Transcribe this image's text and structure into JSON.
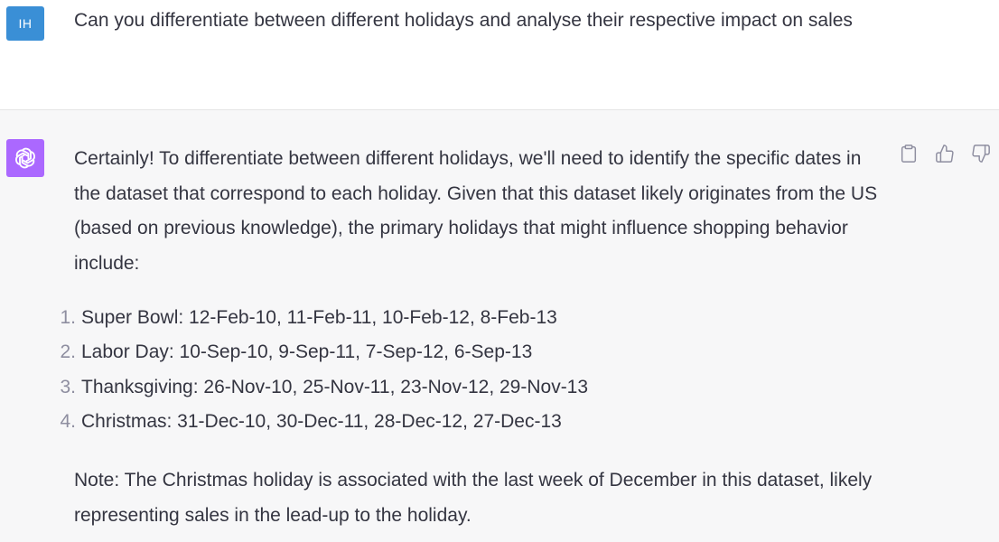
{
  "user_message": {
    "avatar_initials": "IH",
    "text": "Can you differentiate between different holidays and analyse their respective impact on sales"
  },
  "assistant_message": {
    "avatar_icon": "openai-logo-icon",
    "intro": "Certainly! To differentiate between different holidays, we'll need to identify the specific dates in the dataset that correspond to each holiday. Given that this dataset likely originates from the US (based on previous knowledge), the primary holidays that might influence shopping behavior include:",
    "holidays": [
      {
        "num": "1.",
        "text": "Super Bowl: 12-Feb-10, 11-Feb-11, 10-Feb-12, 8-Feb-13"
      },
      {
        "num": "2.",
        "text": "Labor Day: 10-Sep-10, 9-Sep-11, 7-Sep-12, 6-Sep-13"
      },
      {
        "num": "3.",
        "text": "Thanksgiving: 26-Nov-10, 25-Nov-11, 23-Nov-12, 29-Nov-13"
      },
      {
        "num": "4.",
        "text": "Christmas: 31-Dec-10, 30-Dec-11, 28-Dec-12, 27-Dec-13"
      }
    ],
    "note": "Note: The Christmas holiday is associated with the last week of December in this dataset, likely representing sales in the lead-up to the holiday."
  },
  "actions": {
    "icons": [
      "clipboard-icon",
      "thumbs-up-icon",
      "thumbs-down-icon"
    ]
  },
  "colors": {
    "user_avatar": "#3a8fd6",
    "assistant_avatar": "#ab68ff",
    "assistant_bg": "#f7f7f8",
    "text": "#343541",
    "muted": "#8e8ea0"
  }
}
